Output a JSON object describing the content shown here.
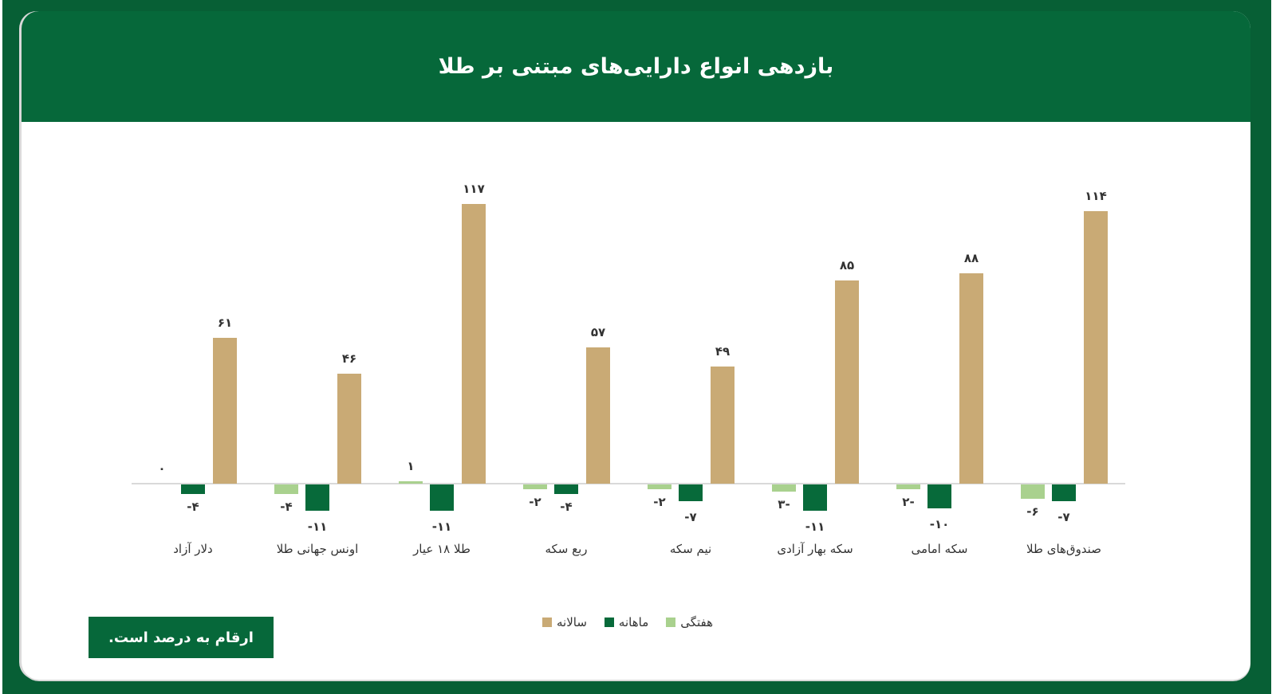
{
  "header": {
    "title": "بازدهی انواع دارایی‌های مبتنی بر طلا"
  },
  "note": "ارقام به درصد است.",
  "colors": {
    "weekly": "#a9d18e",
    "monthly": "#076a3a",
    "annual": "#c9aa75",
    "header": "#06683a",
    "frame": "#075f35"
  },
  "legend": [
    {
      "key": "annual",
      "label": "سالانه"
    },
    {
      "key": "monthly",
      "label": "ماهانه"
    },
    {
      "key": "weekly",
      "label": "هفتگی"
    }
  ],
  "chart_data": {
    "type": "bar",
    "title": "بازدهی انواع دارایی‌های مبتنی بر طلا",
    "xlabel": "",
    "ylabel": "",
    "unit": "%",
    "grid": false,
    "legend_position": "bottom",
    "categories": [
      "دلار آزاد",
      "اونس جهانی طلا",
      "طلا ۱۸ عیار",
      "ربع سکه",
      "نیم سکه",
      "سکه بهار آزادی",
      "سکه امامی",
      "صندوق‌های طلا"
    ],
    "series": [
      {
        "name": "هفتگی",
        "values": [
          0,
          -4,
          1,
          -2,
          -2,
          -3,
          -2,
          -6
        ],
        "labels": [
          "۰",
          "-۴",
          "۱",
          "-۲",
          "-۲",
          "۳-",
          "۲-",
          "-۶"
        ]
      },
      {
        "name": "ماهانه",
        "values": [
          -4,
          -11,
          -11,
          -4,
          -7,
          -11,
          -10,
          -7
        ],
        "labels": [
          "-۴",
          "-۱۱",
          "-۱۱",
          "-۴",
          "-۷",
          "-۱۱",
          "-۱۰",
          "-۷"
        ]
      },
      {
        "name": "سالانه",
        "values": [
          61,
          46,
          117,
          57,
          49,
          85,
          88,
          114
        ],
        "labels": [
          "۶۱",
          "۴۶",
          "۱۱۷",
          "۵۷",
          "۴۹",
          "۸۵",
          "۸۸",
          "۱۱۴"
        ]
      }
    ],
    "ylim": [
      -15,
      120
    ]
  }
}
